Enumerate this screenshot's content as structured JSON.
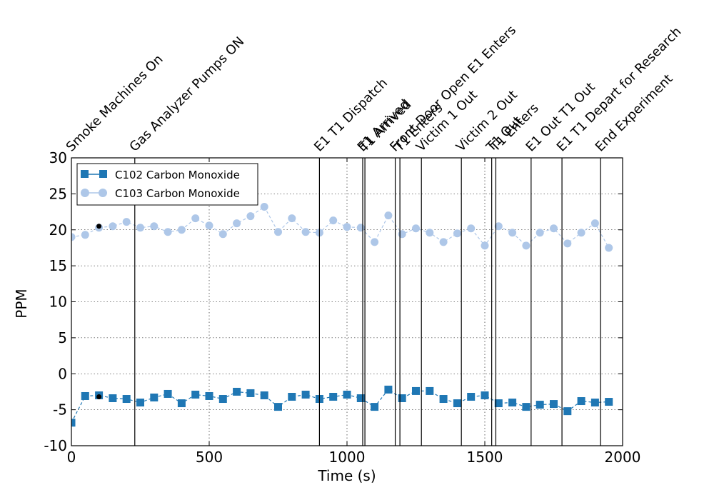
{
  "chart_data": {
    "type": "line",
    "xlabel": "Time (s)",
    "ylabel": "PPM",
    "xlim": [
      0,
      2000
    ],
    "ylim": [
      -10,
      30
    ],
    "xticks": [
      0,
      500,
      1000,
      1500,
      2000
    ],
    "yticks": [
      -10,
      -5,
      0,
      5,
      10,
      15,
      20,
      25,
      30
    ],
    "grid": true,
    "legend_placement": "top-left",
    "series": [
      {
        "name": "C102 Carbon Monoxide",
        "color": "#1f77b4",
        "marker": "square",
        "x": [
          0,
          50,
          100,
          150,
          200,
          250,
          300,
          350,
          400,
          450,
          500,
          550,
          600,
          650,
          700,
          750,
          800,
          850,
          900,
          950,
          1000,
          1050,
          1100,
          1150,
          1200,
          1250,
          1300,
          1350,
          1400,
          1450,
          1500,
          1550,
          1600,
          1650,
          1700,
          1750,
          1800,
          1850,
          1900,
          1950
        ],
        "values": [
          -6.8,
          -3.1,
          -3.0,
          -3.4,
          -3.5,
          -4.0,
          -3.3,
          -2.8,
          -4.1,
          -2.9,
          -3.1,
          -3.5,
          -2.5,
          -2.7,
          -3.0,
          -4.6,
          -3.2,
          -2.9,
          -3.5,
          -3.2,
          -2.9,
          -3.4,
          -4.6,
          -2.2,
          -3.4,
          -2.4,
          -2.4,
          -3.5,
          -4.1,
          -3.2,
          -3.0,
          -4.1,
          -4.0,
          -4.6,
          -4.3,
          -4.2,
          -5.2,
          -3.8,
          -4.0,
          -3.9
        ]
      },
      {
        "name": "C103 Carbon Monoxide",
        "color": "#aec7e8",
        "marker": "circle",
        "x": [
          0,
          50,
          100,
          150,
          200,
          250,
          300,
          350,
          400,
          450,
          500,
          550,
          600,
          650,
          700,
          750,
          800,
          850,
          900,
          950,
          1000,
          1050,
          1100,
          1150,
          1200,
          1250,
          1300,
          1350,
          1400,
          1450,
          1500,
          1550,
          1600,
          1650,
          1700,
          1750,
          1800,
          1850,
          1900,
          1950
        ],
        "values": [
          19.0,
          19.3,
          20.3,
          20.5,
          21.1,
          20.3,
          20.5,
          19.7,
          20.0,
          21.6,
          20.6,
          19.4,
          20.9,
          21.9,
          23.2,
          19.7,
          21.6,
          19.7,
          19.6,
          21.3,
          20.4,
          20.3,
          18.3,
          22.0,
          19.4,
          20.2,
          19.6,
          18.3,
          19.5,
          20.2,
          17.8,
          20.5,
          19.6,
          17.8,
          19.6,
          20.2,
          18.1,
          19.6,
          20.9,
          17.5
        ]
      }
    ],
    "extra_markers": [
      {
        "x": 100,
        "y": 20.5,
        "color": "#000000"
      },
      {
        "x": 100,
        "y": -3.2,
        "color": "#000000"
      }
    ],
    "events": [
      {
        "time": 0,
        "label": "Smoke Machines On"
      },
      {
        "time": 230,
        "label": "Gas Analyzer Pumps ON"
      },
      {
        "time": 900,
        "label": "E1 T1 Dispatch"
      },
      {
        "time": 1057,
        "label": "E1 Arrived"
      },
      {
        "time": 1065,
        "label": "T1 Arrived"
      },
      {
        "time": 1175,
        "label": "Front Door Open E1 Enters"
      },
      {
        "time": 1192,
        "label": "T1 Enters"
      },
      {
        "time": 1270,
        "label": "Victim 1 Out"
      },
      {
        "time": 1415,
        "label": "Victim 2 Out"
      },
      {
        "time": 1525,
        "label": "T1 Out"
      },
      {
        "time": 1540,
        "label": "T1 Enters"
      },
      {
        "time": 1668,
        "label": "E1 Out T1 Out"
      },
      {
        "time": 1780,
        "label": "E1 T1 Depart for Research"
      },
      {
        "time": 1920,
        "label": "End Experiment"
      }
    ]
  }
}
